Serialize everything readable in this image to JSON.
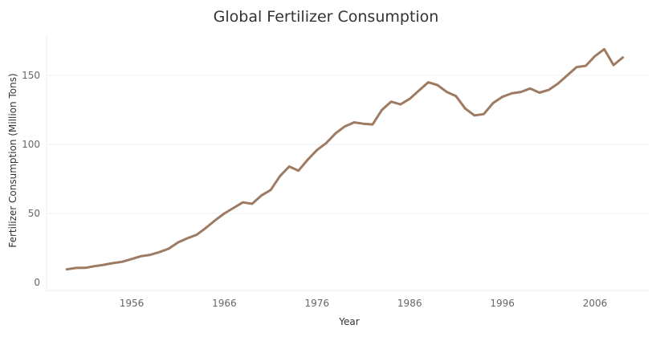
{
  "chart_data": {
    "type": "line",
    "title": "Global Fertilizer Consumption",
    "xlabel": "Year",
    "ylabel": "Fertilizer Consumption (Million Tons)",
    "xlim": [
      1946,
      2012
    ],
    "ylim": [
      0,
      170
    ],
    "x_ticks": [
      1956,
      1966,
      1976,
      1986,
      1996,
      2006
    ],
    "y_ticks": [
      0,
      50,
      100,
      150
    ],
    "grid": {
      "horizontal": true,
      "vertical": false
    },
    "legend": "none",
    "series": [
      {
        "color": "#9e7a63",
        "x": [
          1949,
          1950,
          1951,
          1952,
          1953,
          1954,
          1955,
          1956,
          1957,
          1958,
          1959,
          1960,
          1961,
          1962,
          1963,
          1964,
          1965,
          1966,
          1967,
          1968,
          1969,
          1970,
          1971,
          1972,
          1973,
          1974,
          1975,
          1976,
          1977,
          1978,
          1979,
          1980,
          1981,
          1982,
          1983,
          1984,
          1985,
          1986,
          1987,
          1988,
          1989,
          1990,
          1991,
          1992,
          1993,
          1994,
          1995,
          1996,
          1997,
          1998,
          1999,
          2000,
          2001,
          2002,
          2003,
          2004,
          2005,
          2006,
          2007,
          2008,
          2009
        ],
        "values": [
          9.5,
          10.5,
          10.6,
          11.8,
          12.8,
          14,
          15,
          17,
          19,
          20,
          22,
          24.5,
          29,
          32,
          34.5,
          39.5,
          45,
          50,
          54,
          58,
          57,
          63,
          67,
          77,
          84,
          81,
          89,
          96,
          101,
          108,
          113,
          116,
          115,
          114.5,
          125,
          131,
          129,
          133,
          139,
          145,
          143,
          138,
          135,
          126,
          121,
          122,
          130,
          134.5,
          137,
          138,
          140.5,
          137.5,
          139.5,
          144,
          150,
          156,
          157,
          164,
          169,
          157.5,
          163
        ]
      }
    ]
  }
}
